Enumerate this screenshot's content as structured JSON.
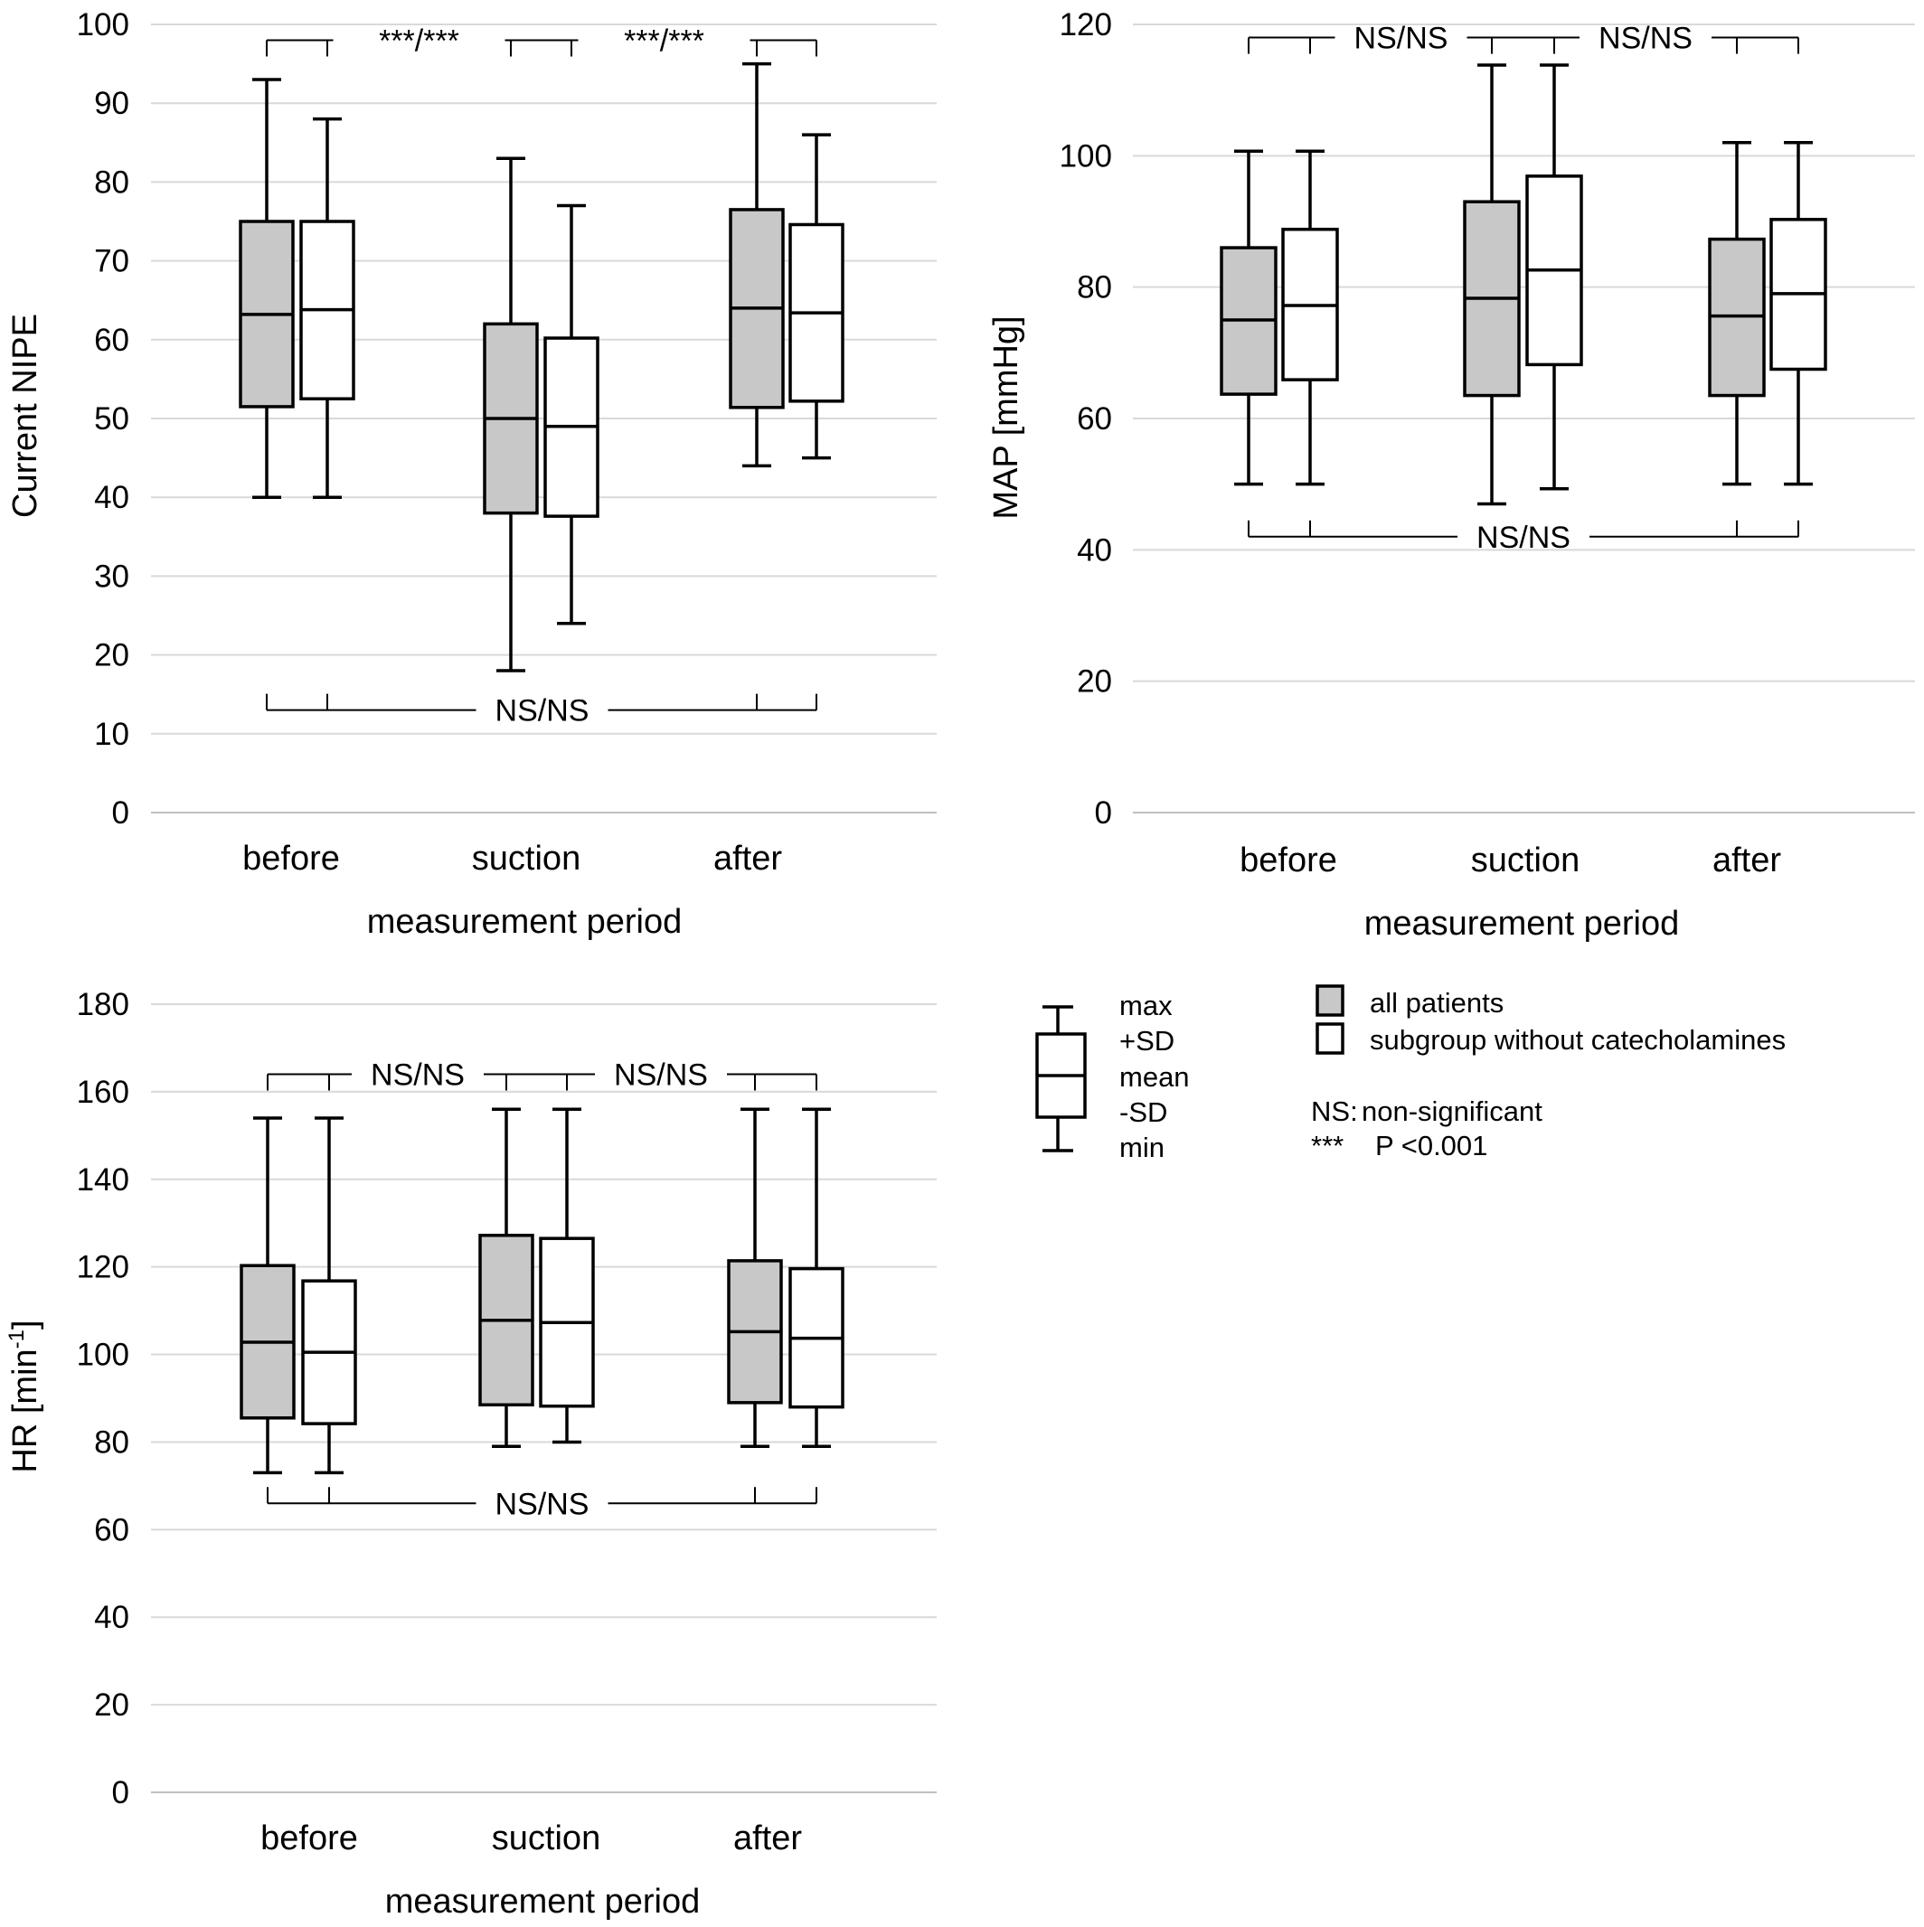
{
  "colors": {
    "all_patients_fill": "#c8c8c8",
    "subgroup_fill": "#ffffff",
    "gridline": "#d9d9d9",
    "line": "#000000"
  },
  "chart_data": [
    {
      "id": "nipe",
      "type": "boxplot",
      "xlabel": "measurement period",
      "ylabel": "Current NIPE",
      "ylim": [
        0,
        100
      ],
      "yticks": [
        0,
        10,
        20,
        30,
        40,
        50,
        60,
        70,
        80,
        90,
        100
      ],
      "grid": true,
      "categories": [
        "before",
        "suction",
        "after"
      ],
      "series": [
        {
          "name": "all patients",
          "boxes": [
            {
              "min": 40,
              "minus_sd": 51.5,
              "mean": 63.2,
              "plus_sd": 75,
              "max": 93
            },
            {
              "min": 18,
              "minus_sd": 38,
              "mean": 50,
              "plus_sd": 62,
              "max": 83
            },
            {
              "min": 44,
              "minus_sd": 51.4,
              "mean": 64,
              "plus_sd": 76.5,
              "max": 95
            }
          ]
        },
        {
          "name": "subgroup without catecholamines",
          "boxes": [
            {
              "min": 40,
              "minus_sd": 52.5,
              "mean": 63.8,
              "plus_sd": 75,
              "max": 88
            },
            {
              "min": 24,
              "minus_sd": 37.6,
              "mean": 49,
              "plus_sd": 60.2,
              "max": 77
            },
            {
              "min": 45,
              "minus_sd": 52.2,
              "mean": 63.4,
              "plus_sd": 74.6,
              "max": 86
            }
          ]
        }
      ],
      "significance": [
        {
          "from": "before",
          "to": "suction",
          "label": "***/***",
          "position": "top",
          "y": 98
        },
        {
          "from": "suction",
          "to": "after",
          "label": "***/***",
          "position": "top",
          "y": 98
        },
        {
          "from": "before",
          "to": "after",
          "label": "NS/NS",
          "position": "bottom",
          "y": 13
        }
      ]
    },
    {
      "id": "map",
      "type": "boxplot",
      "xlabel": "measurement period",
      "ylabel": "MAP [mmHg]",
      "ylim": [
        0,
        120
      ],
      "yticks": [
        0,
        20,
        40,
        60,
        80,
        100,
        120
      ],
      "grid": true,
      "categories": [
        "before",
        "suction",
        "after"
      ],
      "series": [
        {
          "name": "all patients",
          "boxes": [
            {
              "min": 50,
              "minus_sd": 63.7,
              "mean": 75,
              "plus_sd": 86,
              "max": 100.7
            },
            {
              "min": 47,
              "minus_sd": 63.5,
              "mean": 78.3,
              "plus_sd": 93,
              "max": 113.8
            },
            {
              "min": 50,
              "minus_sd": 63.5,
              "mean": 75.6,
              "plus_sd": 87.3,
              "max": 102
            }
          ]
        },
        {
          "name": "subgroup without catecholamines",
          "boxes": [
            {
              "min": 50,
              "minus_sd": 65.9,
              "mean": 77.2,
              "plus_sd": 88.8,
              "max": 100.7
            },
            {
              "min": 49.3,
              "minus_sd": 68.2,
              "mean": 82.6,
              "plus_sd": 96.9,
              "max": 113.8
            },
            {
              "min": 50,
              "minus_sd": 67.5,
              "mean": 79,
              "plus_sd": 90.3,
              "max": 102
            }
          ]
        }
      ],
      "significance": [
        {
          "from": "before",
          "to": "suction",
          "label": "NS/NS",
          "position": "top",
          "y": 118
        },
        {
          "from": "suction",
          "to": "after",
          "label": "NS/NS",
          "position": "top",
          "y": 118
        },
        {
          "from": "before",
          "to": "after",
          "label": "NS/NS",
          "position": "bottom",
          "y": 42
        }
      ]
    },
    {
      "id": "hr",
      "type": "boxplot",
      "xlabel": "measurement period",
      "ylabel": "HR [min",
      "ylabel_sup": "-1",
      "ylabel_end": "]",
      "ylim": [
        0,
        180
      ],
      "yticks": [
        0,
        20,
        40,
        60,
        80,
        100,
        120,
        140,
        160,
        180
      ],
      "grid": true,
      "categories": [
        "before",
        "suction",
        "after"
      ],
      "series": [
        {
          "name": "all patients",
          "boxes": [
            {
              "min": 73,
              "minus_sd": 85.5,
              "mean": 102.8,
              "plus_sd": 120.3,
              "max": 154
            },
            {
              "min": 79,
              "minus_sd": 88.5,
              "mean": 107.8,
              "plus_sd": 127.2,
              "max": 156
            },
            {
              "min": 79,
              "minus_sd": 89,
              "mean": 105.2,
              "plus_sd": 121.4,
              "max": 156
            }
          ]
        },
        {
          "name": "subgroup without catecholamines",
          "boxes": [
            {
              "min": 73,
              "minus_sd": 84.2,
              "mean": 100.5,
              "plus_sd": 116.8,
              "max": 154
            },
            {
              "min": 80,
              "minus_sd": 88.2,
              "mean": 107.3,
              "plus_sd": 126.5,
              "max": 156
            },
            {
              "min": 79,
              "minus_sd": 88,
              "mean": 103.7,
              "plus_sd": 119.6,
              "max": 156
            }
          ]
        }
      ],
      "significance": [
        {
          "from": "before",
          "to": "suction",
          "label": "NS/NS",
          "position": "top",
          "y": 164
        },
        {
          "from": "suction",
          "to": "after",
          "label": "NS/NS",
          "position": "top",
          "y": 164
        },
        {
          "from": "before",
          "to": "after",
          "label": "NS/NS",
          "position": "bottom",
          "y": 66
        }
      ]
    }
  ],
  "legend": {
    "box_key": [
      "max",
      "+SD",
      "mean",
      "-SD",
      "min"
    ],
    "series": [
      "all patients",
      "subgroup without catecholamines"
    ],
    "notes": [
      {
        "symbol": "NS:",
        "text": "non-significant"
      },
      {
        "symbol": "***",
        "text": "P <0.001"
      }
    ]
  }
}
